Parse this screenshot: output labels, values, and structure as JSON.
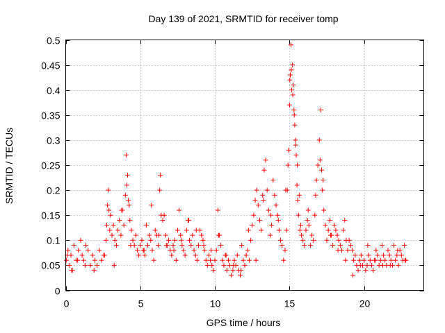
{
  "chart_data": {
    "type": "scatter",
    "title": "Day 139 of 2021, SRMTID for receiver tomp",
    "xlabel": "GPS time / hours",
    "ylabel": "SRMTID / TECUs",
    "xlim": [
      0,
      24
    ],
    "ylim": [
      0,
      0.5
    ],
    "x_ticks": [
      0,
      5,
      10,
      15,
      20
    ],
    "x_tick_labels": [
      "0",
      "5",
      "10",
      "15",
      "20"
    ],
    "y_ticks": [
      0,
      0.05,
      0.1,
      0.15,
      0.2,
      0.25,
      0.3,
      0.35,
      0.4,
      0.45,
      0.5
    ],
    "y_tick_labels": [
      "0",
      "0.05",
      "0.1",
      "0.15",
      "0.2",
      "0.25",
      "0.3",
      "0.35",
      "0.4",
      "0.45",
      "0.5"
    ],
    "grid": true,
    "marker": "plus",
    "color": "#ff0000",
    "series": [
      {
        "name": "SRMTID",
        "x": [
          0.05,
          0.15,
          0.25,
          0.35,
          0.45,
          0.55,
          0.7,
          0.85,
          1.0,
          1.1,
          1.2,
          1.35,
          1.5,
          1.65,
          1.8,
          1.95,
          2.1,
          2.25,
          2.4,
          2.55,
          2.7,
          2.75,
          2.8,
          2.85,
          2.9,
          2.95,
          3.0,
          3.1,
          3.2,
          3.3,
          3.4,
          3.5,
          3.6,
          3.7,
          3.8,
          3.9,
          4.0,
          4.05,
          4.1,
          4.15,
          4.2,
          4.25,
          4.3,
          4.4,
          4.5,
          4.6,
          4.7,
          4.8,
          4.9,
          5.0,
          5.1,
          5.2,
          5.3,
          5.4,
          5.5,
          5.6,
          5.7,
          5.8,
          5.9,
          6.0,
          6.1,
          6.2,
          6.3,
          6.35,
          6.4,
          6.5,
          6.6,
          6.7,
          6.8,
          6.9,
          7.0,
          7.1,
          7.2,
          7.3,
          7.4,
          7.5,
          7.6,
          7.7,
          7.8,
          7.9,
          8.0,
          8.1,
          8.2,
          8.3,
          8.4,
          8.5,
          8.6,
          8.7,
          8.8,
          8.9,
          9.0,
          9.1,
          9.2,
          9.3,
          9.4,
          9.5,
          9.6,
          9.7,
          9.8,
          9.9,
          10.0,
          10.1,
          10.2,
          10.3,
          10.4,
          10.5,
          10.6,
          10.7,
          10.8,
          10.9,
          11.0,
          11.1,
          11.2,
          11.3,
          11.4,
          11.5,
          11.6,
          11.7,
          11.8,
          11.9,
          12.0,
          12.1,
          12.2,
          12.3,
          12.4,
          12.5,
          12.6,
          12.7,
          12.8,
          12.9,
          13.0,
          13.1,
          13.2,
          13.3,
          13.4,
          13.5,
          13.6,
          13.7,
          13.8,
          13.9,
          14.0,
          14.1,
          14.2,
          14.3,
          14.4,
          14.5,
          14.6,
          14.7,
          14.8,
          14.85,
          14.9,
          14.95,
          15.0,
          15.05,
          15.1,
          15.15,
          15.2,
          15.25,
          15.3,
          15.35,
          15.4,
          15.45,
          15.5,
          15.55,
          15.6,
          15.7,
          15.8,
          15.9,
          16.0,
          16.1,
          16.2,
          16.3,
          16.4,
          16.5,
          16.6,
          16.7,
          16.8,
          16.9,
          17.0,
          17.05,
          17.1,
          17.15,
          17.2,
          17.3,
          17.4,
          17.5,
          17.6,
          17.7,
          17.8,
          17.9,
          18.0,
          18.1,
          18.2,
          18.3,
          18.4,
          18.5,
          18.6,
          18.7,
          18.8,
          18.9,
          19.0,
          19.1,
          19.2,
          19.3,
          19.4,
          19.5,
          19.6,
          19.7,
          19.8,
          19.9,
          20.0,
          20.1,
          20.2,
          20.3,
          20.4,
          20.5,
          20.6,
          20.7,
          20.8,
          20.9,
          21.0,
          21.1,
          21.2,
          21.3,
          21.4,
          21.5,
          21.6,
          21.7,
          21.8,
          21.9,
          22.0,
          22.1,
          22.2,
          22.3,
          22.4,
          22.5,
          22.6,
          22.7,
          22.8,
          0.1,
          0.4,
          0.8,
          1.3,
          1.9,
          2.6,
          3.25,
          3.75,
          4.35,
          5.25,
          5.75,
          6.25,
          6.75,
          7.25,
          7.75,
          8.25,
          8.75,
          9.25,
          9.75,
          10.25,
          10.75,
          11.25,
          11.75,
          12.25,
          12.75,
          13.25,
          13.75,
          14.25,
          14.75,
          15.02,
          15.12,
          15.22,
          15.32,
          15.42,
          15.52,
          15.65,
          15.75,
          16.25,
          16.75,
          17.25,
          17.75,
          18.25,
          18.75,
          19.25,
          19.75,
          20.25,
          20.75,
          21.25,
          21.75,
          22.25,
          22.75
        ],
        "y": [
          0.06,
          0.08,
          0.05,
          0.07,
          0.04,
          0.09,
          0.06,
          0.08,
          0.1,
          0.07,
          0.06,
          0.09,
          0.08,
          0.05,
          0.07,
          0.06,
          0.05,
          0.08,
          0.06,
          0.07,
          0.1,
          0.13,
          0.17,
          0.2,
          0.16,
          0.12,
          0.15,
          0.11,
          0.13,
          0.1,
          0.09,
          0.12,
          0.14,
          0.11,
          0.16,
          0.13,
          0.19,
          0.27,
          0.21,
          0.23,
          0.18,
          0.17,
          0.14,
          0.12,
          0.1,
          0.09,
          0.11,
          0.08,
          0.07,
          0.09,
          0.1,
          0.08,
          0.07,
          0.13,
          0.09,
          0.11,
          0.1,
          0.08,
          0.06,
          0.12,
          0.11,
          0.09,
          0.2,
          0.23,
          0.15,
          0.14,
          0.15,
          0.11,
          0.09,
          0.1,
          0.08,
          0.07,
          0.09,
          0.1,
          0.06,
          0.12,
          0.16,
          0.11,
          0.09,
          0.08,
          0.07,
          0.12,
          0.14,
          0.1,
          0.09,
          0.11,
          0.08,
          0.07,
          0.06,
          0.09,
          0.12,
          0.11,
          0.1,
          0.08,
          0.06,
          0.05,
          0.07,
          0.06,
          0.05,
          0.04,
          0.06,
          0.08,
          0.16,
          0.11,
          0.09,
          0.06,
          0.05,
          0.07,
          0.04,
          0.06,
          0.05,
          0.03,
          0.04,
          0.06,
          0.05,
          0.07,
          0.04,
          0.03,
          0.09,
          0.06,
          0.05,
          0.07,
          0.08,
          0.06,
          0.1,
          0.13,
          0.15,
          0.18,
          0.2,
          0.17,
          0.14,
          0.12,
          0.19,
          0.24,
          0.26,
          0.2,
          0.16,
          0.11,
          0.13,
          0.22,
          0.19,
          0.17,
          0.15,
          0.12,
          0.1,
          0.09,
          0.06,
          0.08,
          0.12,
          0.2,
          0.25,
          0.28,
          0.37,
          0.43,
          0.49,
          0.4,
          0.45,
          0.41,
          0.36,
          0.33,
          0.3,
          0.27,
          0.21,
          0.18,
          0.15,
          0.12,
          0.11,
          0.1,
          0.09,
          0.12,
          0.14,
          0.13,
          0.09,
          0.11,
          0.1,
          0.15,
          0.22,
          0.25,
          0.3,
          0.26,
          0.36,
          0.24,
          0.2,
          0.16,
          0.13,
          0.1,
          0.12,
          0.14,
          0.11,
          0.09,
          0.13,
          0.12,
          0.11,
          0.1,
          0.09,
          0.08,
          0.12,
          0.14,
          0.1,
          0.08,
          0.1,
          0.09,
          0.08,
          0.06,
          0.07,
          0.05,
          0.04,
          0.06,
          0.07,
          0.05,
          0.06,
          0.04,
          0.05,
          0.07,
          0.06,
          0.05,
          0.04,
          0.06,
          0.08,
          0.07,
          0.05,
          0.06,
          0.09,
          0.07,
          0.06,
          0.05,
          0.08,
          0.07,
          0.06,
          0.05,
          0.09,
          0.06,
          0.07,
          0.05,
          0.08,
          0.07,
          0.06,
          0.09,
          0.06,
          0.07,
          0.04,
          0.06,
          0.05,
          0.04,
          0.07,
          0.05,
          0.16,
          0.09,
          0.08,
          0.17,
          0.11,
          0.09,
          0.08,
          0.1,
          0.14,
          0.12,
          0.09,
          0.08,
          0.11,
          0.07,
          0.05,
          0.04,
          0.12,
          0.06,
          0.18,
          0.15,
          0.14,
          0.2,
          0.42,
          0.44,
          0.39,
          0.35,
          0.29,
          0.25,
          0.19,
          0.13,
          0.16,
          0.19,
          0.22,
          0.11,
          0.08,
          0.06,
          0.03,
          0.05,
          0.09,
          0.06,
          0.05,
          0.05,
          0.08,
          0.06
        ]
      }
    ]
  }
}
